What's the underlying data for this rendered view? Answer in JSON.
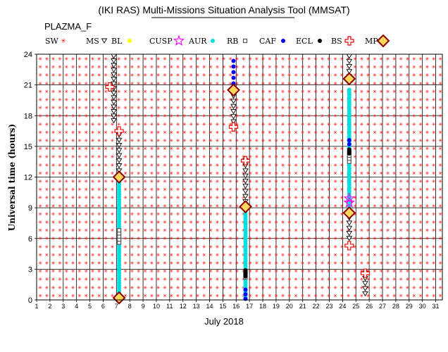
{
  "chart_data": {
    "type": "scatter",
    "title": "(IKI RAS) Multi-Missions Situation Analysis Tool (MMSAT)",
    "subtitle": "PLAZMA_F",
    "xlabel": "July 2018",
    "ylabel": "Universal time (hours)",
    "xlim": [
      1,
      31.5
    ],
    "ylim": [
      0,
      24
    ],
    "x_ticks": [
      "1",
      "2",
      "3",
      "4",
      "5",
      "6",
      "7",
      "8",
      "9",
      "10",
      "11",
      "12",
      "13",
      "14",
      "15",
      "16",
      "17",
      "18",
      "19",
      "20",
      "21",
      "22",
      "23",
      "24",
      "25",
      "26",
      "27",
      "28",
      "29",
      "30",
      "31"
    ],
    "y_ticks": [
      "0",
      "3",
      "6",
      "9",
      "12",
      "15",
      "18",
      "21",
      "24"
    ],
    "grid": true,
    "legend_position": "top",
    "legend": [
      {
        "label": "SW",
        "marker": "star",
        "color": "#ff0000"
      },
      {
        "label": "MS",
        "marker": "triangle-down",
        "color": "#000000"
      },
      {
        "label": "BL",
        "marker": "dot",
        "color": "#ffff00"
      },
      {
        "label": "CUSP",
        "marker": "star-outline",
        "color": "#ff00ff"
      },
      {
        "label": "AUR",
        "marker": "dot",
        "color": "#00e0e0"
      },
      {
        "label": "RB",
        "marker": "square",
        "color": "#555555"
      },
      {
        "label": "CAF",
        "marker": "dot",
        "color": "#0000ff"
      },
      {
        "label": "ECL",
        "marker": "dot",
        "color": "#000000"
      },
      {
        "label": "BS",
        "marker": "cross",
        "color": "#ff0000"
      },
      {
        "label": "MP",
        "marker": "diamond",
        "color": "#8b0000"
      }
    ],
    "colors": {
      "SW": "#ff0000",
      "MS": "#000000",
      "BL": "#ffff00",
      "CUSP": "#ff00ff",
      "AUR": "#00e0e0",
      "RB": "#555555",
      "CAF": "#0000ff",
      "ECL": "#000000",
      "BS": "#ff0000",
      "MP": "#8b0000"
    },
    "series": [
      {
        "name": "MS",
        "segments": [
          {
            "x": 6.8,
            "y_from": 17.5,
            "y_to": 24.0,
            "step": 0.45
          },
          {
            "x": 7.2,
            "y_from": 12.6,
            "y_to": 16.2,
            "step": 0.5
          },
          {
            "x": 15.8,
            "y_from": 17.4,
            "y_to": 20.0,
            "step": 0.5
          },
          {
            "x": 16.7,
            "y_from": 9.6,
            "y_to": 13.6,
            "step": 0.5
          },
          {
            "x": 24.5,
            "y_from": 21.8,
            "y_to": 24.0,
            "step": 0.5
          },
          {
            "x": 24.5,
            "y_from": 6.0,
            "y_to": 8.2,
            "step": 0.5
          },
          {
            "x": 25.7,
            "y_from": 0.6,
            "y_to": 2.6,
            "step": 0.5
          }
        ]
      },
      {
        "name": "AUR",
        "segments": [
          {
            "x": 7.2,
            "y_from": 0.7,
            "y_to": 11.5,
            "step": 0.24
          },
          {
            "x": 16.7,
            "y_from": 0.2,
            "y_to": 8.6,
            "step": 0.24
          },
          {
            "x": 24.5,
            "y_from": 9.0,
            "y_to": 20.7,
            "step": 0.24
          }
        ]
      },
      {
        "name": "RB",
        "segments": [
          {
            "x": 7.2,
            "y_from": 5.6,
            "y_to": 6.8,
            "step": 0.3
          },
          {
            "x": 16.7,
            "y_from": 2.2,
            "y_to": 2.8,
            "step": 0.3
          },
          {
            "x": 24.5,
            "y_from": 13.5,
            "y_to": 14.4,
            "step": 0.3
          }
        ]
      },
      {
        "name": "CAF",
        "segments": [
          {
            "x": 15.8,
            "y_from": 20.6,
            "y_to": 23.8,
            "step": 0.55
          },
          {
            "x": 16.7,
            "y_from": 0.1,
            "y_to": 1.4,
            "step": 0.45
          },
          {
            "x": 24.5,
            "y_from": 15.2,
            "y_to": 15.6,
            "step": 0.4
          }
        ]
      },
      {
        "name": "ECL",
        "segments": [
          {
            "x": 16.7,
            "y_from": 2.3,
            "y_to": 2.9,
            "step": 0.2
          },
          {
            "x": 24.5,
            "y_from": 14.3,
            "y_to": 14.8,
            "step": 0.2
          }
        ]
      },
      {
        "name": "MP",
        "points": [
          [
            7.2,
            12.0
          ],
          [
            7.2,
            0.2
          ],
          [
            15.8,
            20.5
          ],
          [
            16.7,
            9.1
          ],
          [
            24.5,
            21.6
          ],
          [
            24.5,
            8.5
          ]
        ]
      },
      {
        "name": "BS",
        "points": [
          [
            6.5,
            20.8
          ],
          [
            7.2,
            16.5
          ],
          [
            15.8,
            16.9
          ],
          [
            16.7,
            13.6
          ],
          [
            24.5,
            5.3
          ],
          [
            25.7,
            2.6
          ]
        ]
      },
      {
        "name": "CUSP",
        "points": [
          [
            24.5,
            9.9
          ],
          [
            24.5,
            9.5
          ]
        ]
      }
    ]
  }
}
